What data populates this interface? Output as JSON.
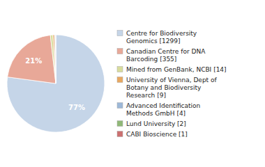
{
  "chart_data": {
    "type": "pie",
    "categories": [
      "Centre for Biodiversity\nGenomics [1299]",
      "Canadian Centre for DNA\nBarcoding [355]",
      "Mined from GenBank, NCBI [14]",
      "University of Vienna, Dept of\nBotany and Biodiversity\nResearch [9]",
      "Advanced Identification\nMethods GmbH [4]",
      "Lund University [2]",
      "CABI Bioscience [1]"
    ],
    "values": [
      1299,
      355,
      14,
      9,
      4,
      2,
      1
    ],
    "shares": [
      77,
      21,
      null,
      null,
      null,
      null,
      null
    ],
    "share_labels": [
      "77%",
      "21%",
      null,
      null,
      null,
      null,
      null
    ],
    "colors": [
      "#c5d5e8",
      "#e8a898",
      "#d8dc9c",
      "#e8a860",
      "#9db8d8",
      "#90b878",
      "#cc7070"
    ],
    "data_labels": true,
    "legend": "right"
  }
}
